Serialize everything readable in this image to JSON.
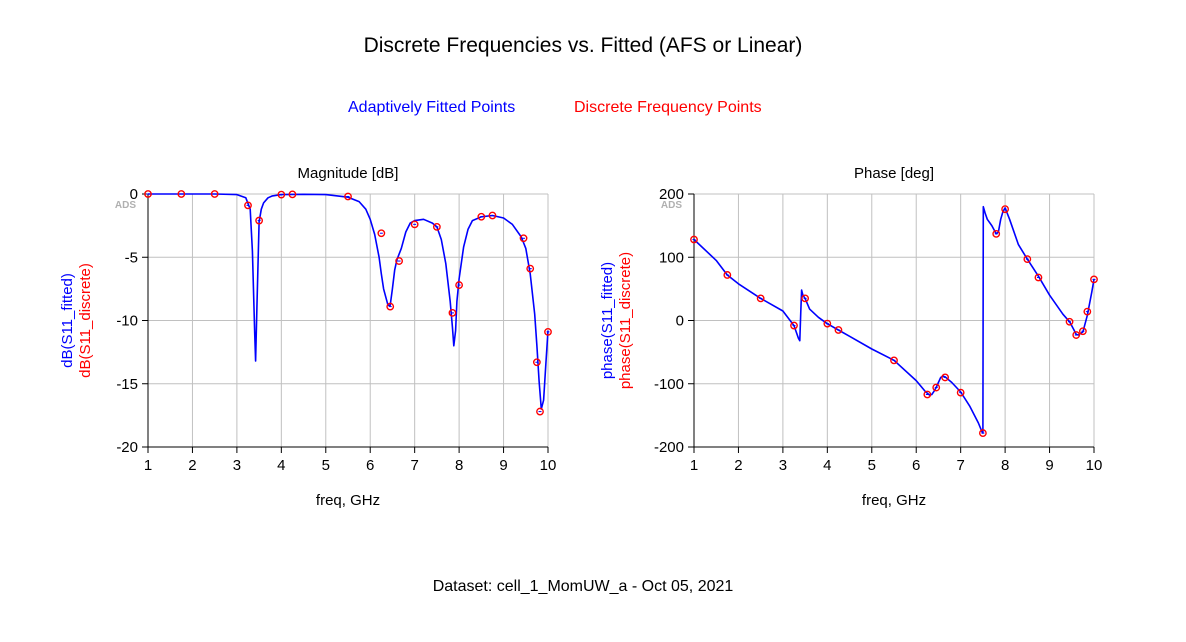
{
  "title": "Discrete Frequencies vs. Fitted (AFS or Linear)",
  "legend": {
    "fitted": {
      "label": "Adaptively Fitted Points",
      "color": "#0000ff"
    },
    "discrete": {
      "label": "Discrete Frequency Points",
      "color": "#ff0000"
    }
  },
  "footer": "Dataset: cell_1_MomUW_a - Oct 05, 2021",
  "watermark": "ADS",
  "chart_data": [
    {
      "type": "line",
      "title": "Magnitude [dB]",
      "xlabel": "freq, GHz",
      "ylabel_fitted": "dB(S11_fitted)",
      "ylabel_discrete": "dB(S11_discrete)",
      "xlim": [
        1,
        10
      ],
      "ylim": [
        -20,
        0
      ],
      "xticks": [
        1,
        2,
        3,
        4,
        5,
        6,
        7,
        8,
        9,
        10
      ],
      "yticks": [
        0,
        -5,
        -10,
        -15,
        -20
      ],
      "grid": true,
      "series": [
        {
          "name": "S11_fitted",
          "color": "#0000ff",
          "x": [
            1,
            1.5,
            2,
            2.5,
            3,
            3.2,
            3.3,
            3.35,
            3.4,
            3.42,
            3.45,
            3.5,
            3.55,
            3.6,
            3.7,
            3.8,
            4,
            4.5,
            5,
            5.5,
            5.75,
            5.9,
            6,
            6.1,
            6.2,
            6.25,
            6.3,
            6.4,
            6.45,
            6.5,
            6.55,
            6.6,
            6.7,
            6.8,
            6.9,
            7,
            7.2,
            7.4,
            7.5,
            7.6,
            7.7,
            7.8,
            7.85,
            7.88,
            7.92,
            7.95,
            8,
            8.1,
            8.2,
            8.3,
            8.5,
            8.75,
            9,
            9.2,
            9.4,
            9.5,
            9.6,
            9.7,
            9.75,
            9.8,
            9.85,
            9.9,
            9.95,
            10
          ],
          "y": [
            0,
            0,
            0,
            0,
            -0.05,
            -0.3,
            -1.2,
            -4.5,
            -11,
            -13.2,
            -9,
            -2.2,
            -1.2,
            -0.7,
            -0.3,
            -0.15,
            -0.05,
            -0.02,
            -0.05,
            -0.25,
            -0.6,
            -1.2,
            -2,
            -3.2,
            -5,
            -6.3,
            -7.5,
            -8.8,
            -8.8,
            -7.5,
            -6,
            -5.2,
            -4.3,
            -3,
            -2.3,
            -2.1,
            -2,
            -2.3,
            -2.6,
            -3.6,
            -5.5,
            -8.5,
            -10.5,
            -12,
            -10.8,
            -8.5,
            -6.7,
            -4.2,
            -2.8,
            -2.1,
            -1.8,
            -1.7,
            -1.9,
            -2.4,
            -3.4,
            -4.3,
            -6.3,
            -9.5,
            -12,
            -14.8,
            -17,
            -16.3,
            -13.5,
            -10.8
          ]
        },
        {
          "name": "S11_discrete",
          "color": "#ff0000",
          "x": [
            1,
            1.75,
            2.5,
            3.25,
            3.5,
            4,
            4.25,
            5.5,
            6.25,
            6.45,
            6.65,
            7,
            7.5,
            7.85,
            8,
            8.5,
            8.75,
            9.45,
            9.6,
            9.75,
            9.82,
            10
          ],
          "y": [
            0,
            0,
            0,
            -0.9,
            -2.1,
            -0.05,
            -0.03,
            -0.2,
            -3.1,
            -8.9,
            -5.3,
            -2.4,
            -2.6,
            -9.4,
            -7.2,
            -1.8,
            -1.7,
            -3.5,
            -5.9,
            -13.3,
            -17.2,
            -10.9
          ]
        }
      ]
    },
    {
      "type": "line",
      "title": "Phase [deg]",
      "xlabel": "freq, GHz",
      "ylabel_fitted": "phase(S11_fitted)",
      "ylabel_discrete": "phase(S11_discrete)",
      "xlim": [
        1,
        10
      ],
      "ylim": [
        -200,
        200
      ],
      "xticks": [
        1,
        2,
        3,
        4,
        5,
        6,
        7,
        8,
        9,
        10
      ],
      "yticks": [
        200,
        100,
        0,
        -100,
        -200
      ],
      "grid": true,
      "series": [
        {
          "name": "S11_fitted",
          "color": "#0000ff",
          "x": [
            1,
            1.5,
            1.75,
            2,
            2.5,
            3,
            3.25,
            3.3,
            3.35,
            3.38,
            3.4,
            3.42,
            3.45,
            3.5,
            3.6,
            3.8,
            4,
            4.25,
            4.5,
            5,
            5.5,
            6,
            6.2,
            6.3,
            6.35,
            6.4,
            6.45,
            6.5,
            6.55,
            6.6,
            6.65,
            6.7,
            6.8,
            7,
            7.2,
            7.4,
            7.48,
            7.5,
            7.51,
            7.55,
            7.6,
            7.7,
            7.8,
            7.85,
            7.9,
            7.95,
            8,
            8.1,
            8.3,
            8.5,
            8.75,
            9,
            9.3,
            9.45,
            9.55,
            9.6,
            9.65,
            9.75,
            9.85,
            9.95,
            10
          ],
          "y": [
            128,
            95,
            72,
            58,
            35,
            15,
            -8,
            -18,
            -28,
            -32,
            10,
            48,
            40,
            35,
            18,
            5,
            -5,
            -15,
            -25,
            -45,
            -63,
            -95,
            -112,
            -118,
            -117,
            -112,
            -106,
            -98,
            -90,
            -88,
            -89,
            -92,
            -98,
            -113,
            -135,
            -162,
            -176,
            -178,
            180,
            170,
            160,
            150,
            137,
            140,
            160,
            172,
            178,
            160,
            120,
            97,
            70,
            40,
            10,
            -2,
            -15,
            -22,
            -23,
            -18,
            8,
            45,
            65
          ]
        },
        {
          "name": "S11_discrete",
          "color": "#ff0000",
          "x": [
            1,
            1.75,
            2.5,
            3.25,
            3.5,
            4,
            4.25,
            5.5,
            6.25,
            6.45,
            6.65,
            7,
            7.5,
            7.8,
            8,
            8.5,
            8.75,
            9.45,
            9.6,
            9.75,
            9.85,
            10
          ],
          "y": [
            128,
            72,
            35,
            -8,
            35,
            -5,
            -15,
            -63,
            -117,
            -106,
            -90,
            -114,
            -178,
            137,
            176,
            97,
            68,
            -2,
            -23,
            -17,
            14,
            65
          ]
        }
      ]
    }
  ]
}
